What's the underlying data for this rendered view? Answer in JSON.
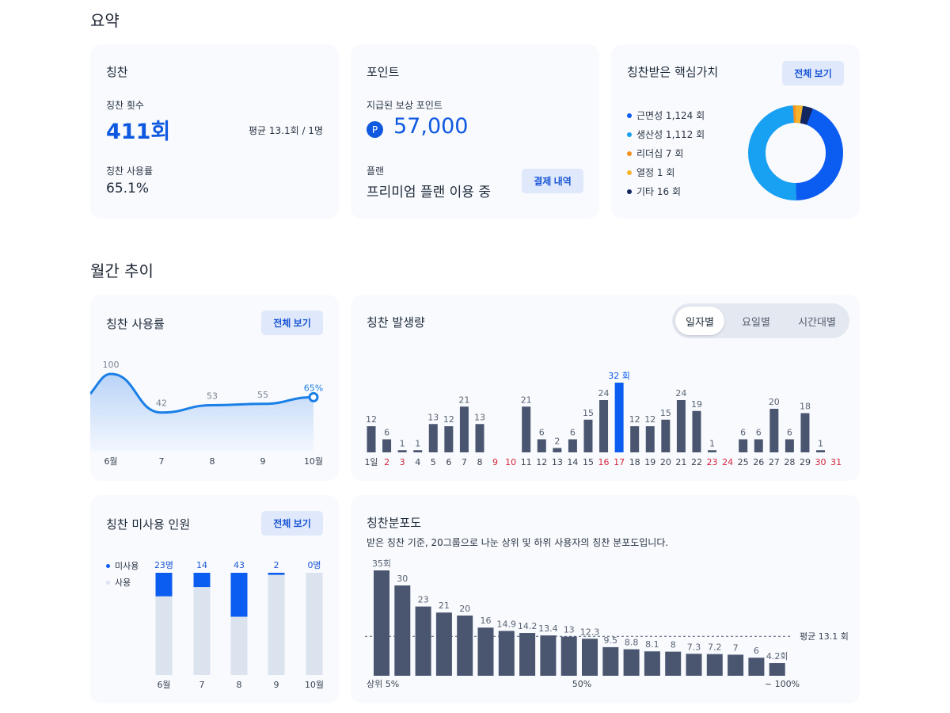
{
  "sections": {
    "summary_title": "요약",
    "monthly_title": "월간 추이"
  },
  "praise_card": {
    "title": "칭찬",
    "count_label": "칭찬 횟수",
    "count_value": "411회",
    "avg": "평균 13.1회 / 1명",
    "usage_label": "칭찬 사용률",
    "usage_value": "65.1%"
  },
  "points_card": {
    "title": "포인트",
    "reward_label": "지급된 보상 포인트",
    "point_icon": "P",
    "reward_value": "57,000",
    "plan_label": "플랜",
    "plan_value": "프리미엄 플랜 이용 중",
    "billing_button": "결제 내역"
  },
  "values_card": {
    "title": "칭찬받은 핵심가치",
    "view_all": "전체 보기",
    "items": [
      {
        "label": "근면성 1,124 회",
        "value": 1124,
        "color": "#0b5cf0"
      },
      {
        "label": "생산성 1,112 회",
        "value": 1112,
        "color": "#18a0f2"
      },
      {
        "label": "리더십 7 회",
        "value": 7,
        "color": "#f5901e"
      },
      {
        "label": "열정 1 회",
        "value": 1,
        "color": "#f7b32b"
      },
      {
        "label": "기타 16 회",
        "value": 16,
        "color": "#13265f"
      }
    ]
  },
  "usage_card": {
    "title": "칭찬 사용률",
    "view_all": "전체 보기"
  },
  "volume_card": {
    "title": "칭찬 발생량",
    "tabs": [
      "일자별",
      "요일별",
      "시간대별"
    ],
    "active_tab": 0
  },
  "unused_card": {
    "title": "칭찬 미사용 인원",
    "view_all": "전체 보기",
    "legend_unused": "미사용",
    "legend_used": "사용"
  },
  "dist_card": {
    "title": "칭찬분포도",
    "description": "받은 칭찬 기준, 20그룹으로 나눈 상위 및 하위 사용자의 칭찬 분포도입니다."
  },
  "colors": {
    "accent": "#0f59e0",
    "bar": "#4a5670",
    "highlight": "#0b5cf0",
    "weekend": "#d7263d",
    "used": "#dbe3ef"
  },
  "chart_data": [
    {
      "type": "area",
      "title": "칭찬 사용률",
      "categories": [
        "6월",
        "7",
        "8",
        "9",
        "10월"
      ],
      "values": [
        100,
        42,
        53,
        55,
        65
      ],
      "labels": [
        "100",
        "42",
        "53",
        "55",
        "65%"
      ]
    },
    {
      "type": "bar",
      "title": "칭찬 발생량",
      "categories": [
        "1일",
        "2",
        "3",
        "4",
        "5",
        "6",
        "7",
        "8",
        "9",
        "10",
        "11",
        "12",
        "13",
        "14",
        "15",
        "16",
        "17",
        "18",
        "19",
        "20",
        "21",
        "22",
        "23",
        "24",
        "25",
        "26",
        "27",
        "28",
        "29",
        "30",
        "31"
      ],
      "values": [
        12,
        6,
        1,
        1,
        13,
        12,
        21,
        13,
        0,
        0,
        21,
        6,
        2,
        6,
        15,
        24,
        32,
        12,
        12,
        15,
        24,
        19,
        1,
        0,
        6,
        6,
        20,
        6,
        18,
        1,
        0
      ],
      "labels": [
        "12",
        "6",
        "1",
        "1",
        "13",
        "12",
        "21",
        "13",
        "",
        "",
        "21",
        "6",
        "2",
        "6",
        "15",
        "24",
        "32 회",
        "12",
        "12",
        "15",
        "24",
        "19",
        "1",
        "",
        "6",
        "6",
        "20",
        "6",
        "18",
        "1",
        ""
      ],
      "weekend_days": [
        "2",
        "3",
        "9",
        "10",
        "16",
        "17",
        "23",
        "24",
        "30",
        "31"
      ],
      "highlight": "17"
    },
    {
      "type": "bar",
      "title": "칭찬 미사용 인원",
      "categories": [
        "6월",
        "7",
        "8",
        "9",
        "10월"
      ],
      "series": [
        {
          "name": "미사용",
          "values": [
            23,
            14,
            43,
            2,
            0
          ]
        },
        {
          "name": "사용",
          "values": [
            77,
            86,
            57,
            98,
            100
          ]
        }
      ],
      "labels": [
        "23명",
        "14",
        "43",
        "2",
        "0명"
      ]
    },
    {
      "type": "bar",
      "title": "칭찬분포도",
      "values": [
        35,
        30,
        23,
        21,
        20,
        16,
        14.9,
        14.2,
        13.4,
        13,
        12.3,
        9.5,
        8.8,
        8.1,
        8,
        7.3,
        7.2,
        7,
        6,
        4.2
      ],
      "labels": [
        "35회",
        "30",
        "23",
        "21",
        "20",
        "16",
        "14.9",
        "14.2",
        "13.4",
        "13",
        "12.3",
        "9.5",
        "8.8",
        "8.1",
        "8",
        "7.3",
        "7.2",
        "7",
        "6",
        "4.2회"
      ],
      "x_ticks": [
        "상위 5%",
        "50%",
        "~ 100%"
      ],
      "average": 13.1,
      "average_label": "평균 13.1 회"
    }
  ]
}
